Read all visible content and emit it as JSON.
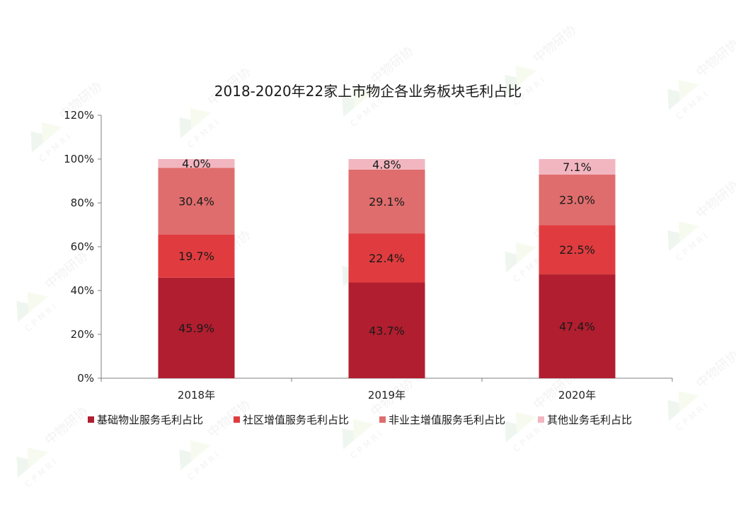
{
  "chart_data": {
    "type": "bar",
    "stacked": true,
    "title": "2018-2020年22家上市物企各业务板块毛利占比",
    "categories": [
      "2018年",
      "2019年",
      "2020年"
    ],
    "series": [
      {
        "name": "基础物业服务毛利占比",
        "values": [
          45.9,
          43.7,
          47.4
        ],
        "labels": [
          "45.9%",
          "43.7%",
          "47.4%"
        ],
        "color": "#b11e2f"
      },
      {
        "name": "社区增值服务毛利占比",
        "values": [
          19.7,
          22.4,
          22.5
        ],
        "labels": [
          "19.7%",
          "22.4%",
          "22.5%"
        ],
        "color": "#e03c3f"
      },
      {
        "name": "非业主增值服务毛利占比",
        "values": [
          30.4,
          29.1,
          23.0
        ],
        "labels": [
          "30.4%",
          "29.1%",
          "23.0%"
        ],
        "color": "#df6d6d"
      },
      {
        "name": "其他业务毛利占比",
        "values": [
          4.0,
          4.8,
          7.1
        ],
        "labels": [
          "4.0%",
          "4.8%",
          "7.1%"
        ],
        "color": "#f2b6c0"
      }
    ],
    "ylim": [
      0,
      120
    ],
    "yticks": [
      "0%",
      "20%",
      "40%",
      "60%",
      "80%",
      "100%",
      "120%"
    ],
    "grid": false,
    "legend_position": "bottom"
  },
  "watermark": {
    "text": "中物研协",
    "subtext": "CPMRI"
  }
}
